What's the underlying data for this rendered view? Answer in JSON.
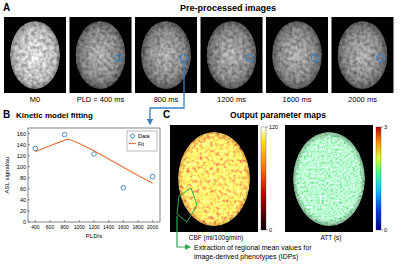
{
  "panel_labels": [
    "A",
    "B",
    "C"
  ],
  "panel_a": {
    "title": "Pre-processed images",
    "images": [
      "M0",
      "PLD = 400 ms",
      "800 ms",
      "1200 ms",
      "1600 ms",
      "2000 ms"
    ]
  },
  "chart_data": {
    "type": "line",
    "title": "Kinetic model fitting",
    "x_label": "PLD/s",
    "y_label": "ASL signal/au",
    "xlim": [
      300,
      2100
    ],
    "xticks": [
      400,
      600,
      800,
      1000,
      1200,
      1400,
      1600,
      1800,
      2000
    ],
    "ylim": [
      0,
      170
    ],
    "yticks": [
      0,
      20,
      40,
      60,
      80,
      100,
      120,
      140,
      160
    ],
    "legend": "upper right",
    "series": [
      {
        "name": "Data",
        "type": "scatter",
        "marker": "circle",
        "color": "#3a7fc1",
        "x": [
          400,
          800,
          1200,
          1600,
          2000
        ],
        "values": [
          133,
          158,
          123,
          62,
          82
        ]
      },
      {
        "name": "Fit",
        "type": "line",
        "color": "#e8743b",
        "x": [
          400,
          600,
          800,
          850,
          1000,
          1200,
          1400,
          1600,
          1800,
          2000
        ],
        "values": [
          127,
          138,
          148,
          150,
          142,
          129,
          114,
          99,
          84,
          70
        ]
      }
    ]
  },
  "panel_c": {
    "title": "Output parameter maps",
    "maps": [
      {
        "label": "CBF (ml/100g/min)",
        "colorbar": {
          "range": [
            0,
            120
          ],
          "ticks": [
            0,
            120
          ]
        }
      },
      {
        "label": "ATT (s)",
        "colorbar": {
          "range": [
            0,
            3
          ],
          "ticks": [
            0,
            3
          ]
        }
      }
    ],
    "annotation": [
      "Extraction of regional mean values for",
      "image-derived phenotypes (IDPs)"
    ]
  }
}
